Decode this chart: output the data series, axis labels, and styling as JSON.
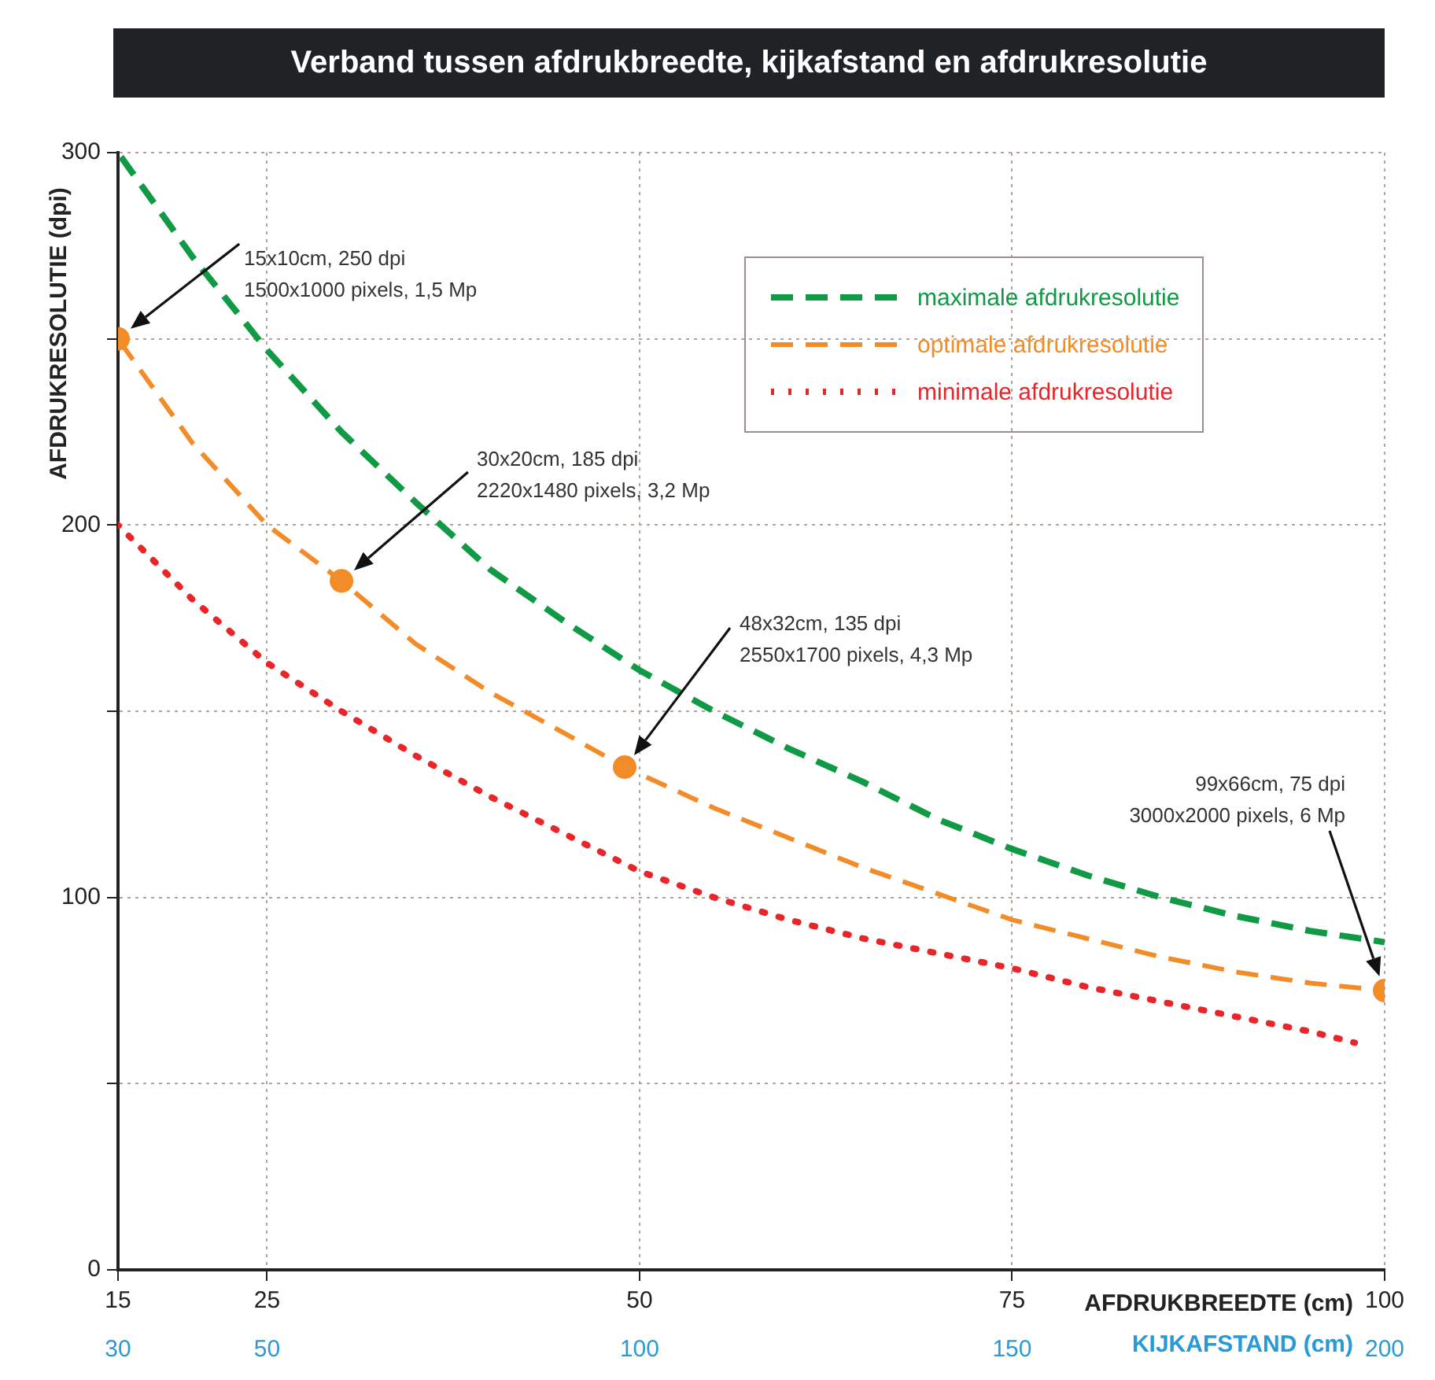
{
  "chart_data": {
    "type": "line",
    "title": "Verband tussen afdrukbreedte, kijkafstand en afdrukresolutie",
    "xlabel": "AFDRUKBREEDTE (cm)",
    "ylabel": "AFDRUKRESOLUTIE (dpi)",
    "x2label": "KIJKAFSTAND (cm)",
    "xlim": [
      15,
      100
    ],
    "xticks": [
      15,
      25,
      50,
      75,
      100
    ],
    "x2lim": [
      30,
      200
    ],
    "x2ticks": [
      30,
      50,
      100,
      150,
      200
    ],
    "ylim": [
      0,
      300
    ],
    "yticks": [
      0,
      {
        "value": 50,
        "label": null
      },
      100,
      {
        "value": 150,
        "label": null
      },
      200,
      {
        "value": 250,
        "label": null
      },
      300
    ],
    "grid": true,
    "legend": "top right",
    "marker": "none",
    "series": [
      {
        "name": "maximale afdrukresolutie",
        "color": "#119a46",
        "line_style": "dashed",
        "x": [
          15,
          20,
          25,
          30,
          35,
          40,
          45,
          50,
          55,
          60,
          65,
          70,
          75,
          80,
          85,
          90,
          95,
          100
        ],
        "values": [
          300,
          272,
          247,
          225,
          206,
          188,
          174,
          161,
          150,
          140,
          131,
          121,
          113,
          106,
          100,
          95,
          91,
          88
        ]
      },
      {
        "name": "optimale afdrukresolutie",
        "color": "#f28c28",
        "line_style": "dashed",
        "x": [
          15,
          20,
          25,
          30,
          35,
          40,
          45,
          49,
          55,
          60,
          65,
          70,
          75,
          80,
          85,
          90,
          95,
          100
        ],
        "values": [
          250,
          222,
          200,
          185,
          168,
          155,
          144,
          135,
          124,
          116,
          108,
          101,
          94,
          89,
          84,
          80,
          77,
          75
        ]
      },
      {
        "name": "minimale afdrukresolutie",
        "color": "#e8262a",
        "line_style": "dotted",
        "x": [
          15,
          20,
          25,
          30,
          35,
          40,
          45,
          50,
          55,
          60,
          65,
          70,
          75,
          80,
          85,
          90,
          95,
          98
        ],
        "values": [
          200,
          180,
          163,
          150,
          138,
          127,
          117,
          107,
          100,
          94,
          89,
          85,
          81,
          76,
          72,
          68,
          64,
          61
        ]
      },
      {
        "type": "scatter",
        "color": "#f28c28",
        "marker": "circle",
        "x": [
          15,
          30,
          49,
          100
        ],
        "values": [
          250,
          185,
          135,
          75
        ]
      }
    ],
    "annotations": [
      "15x10cm, 250 dpi\n1500x1000 pixels, 1,5 Mp",
      "30x20cm, 185 dpi\n2220x1480 pixels, 3,2 Mp",
      "48x32cm, 135 dpi\n2550x1700 pixels, 4,3 Mp",
      "99x66cm, 75 dpi\n3000x2000 pixels, 6 Mp"
    ]
  }
}
